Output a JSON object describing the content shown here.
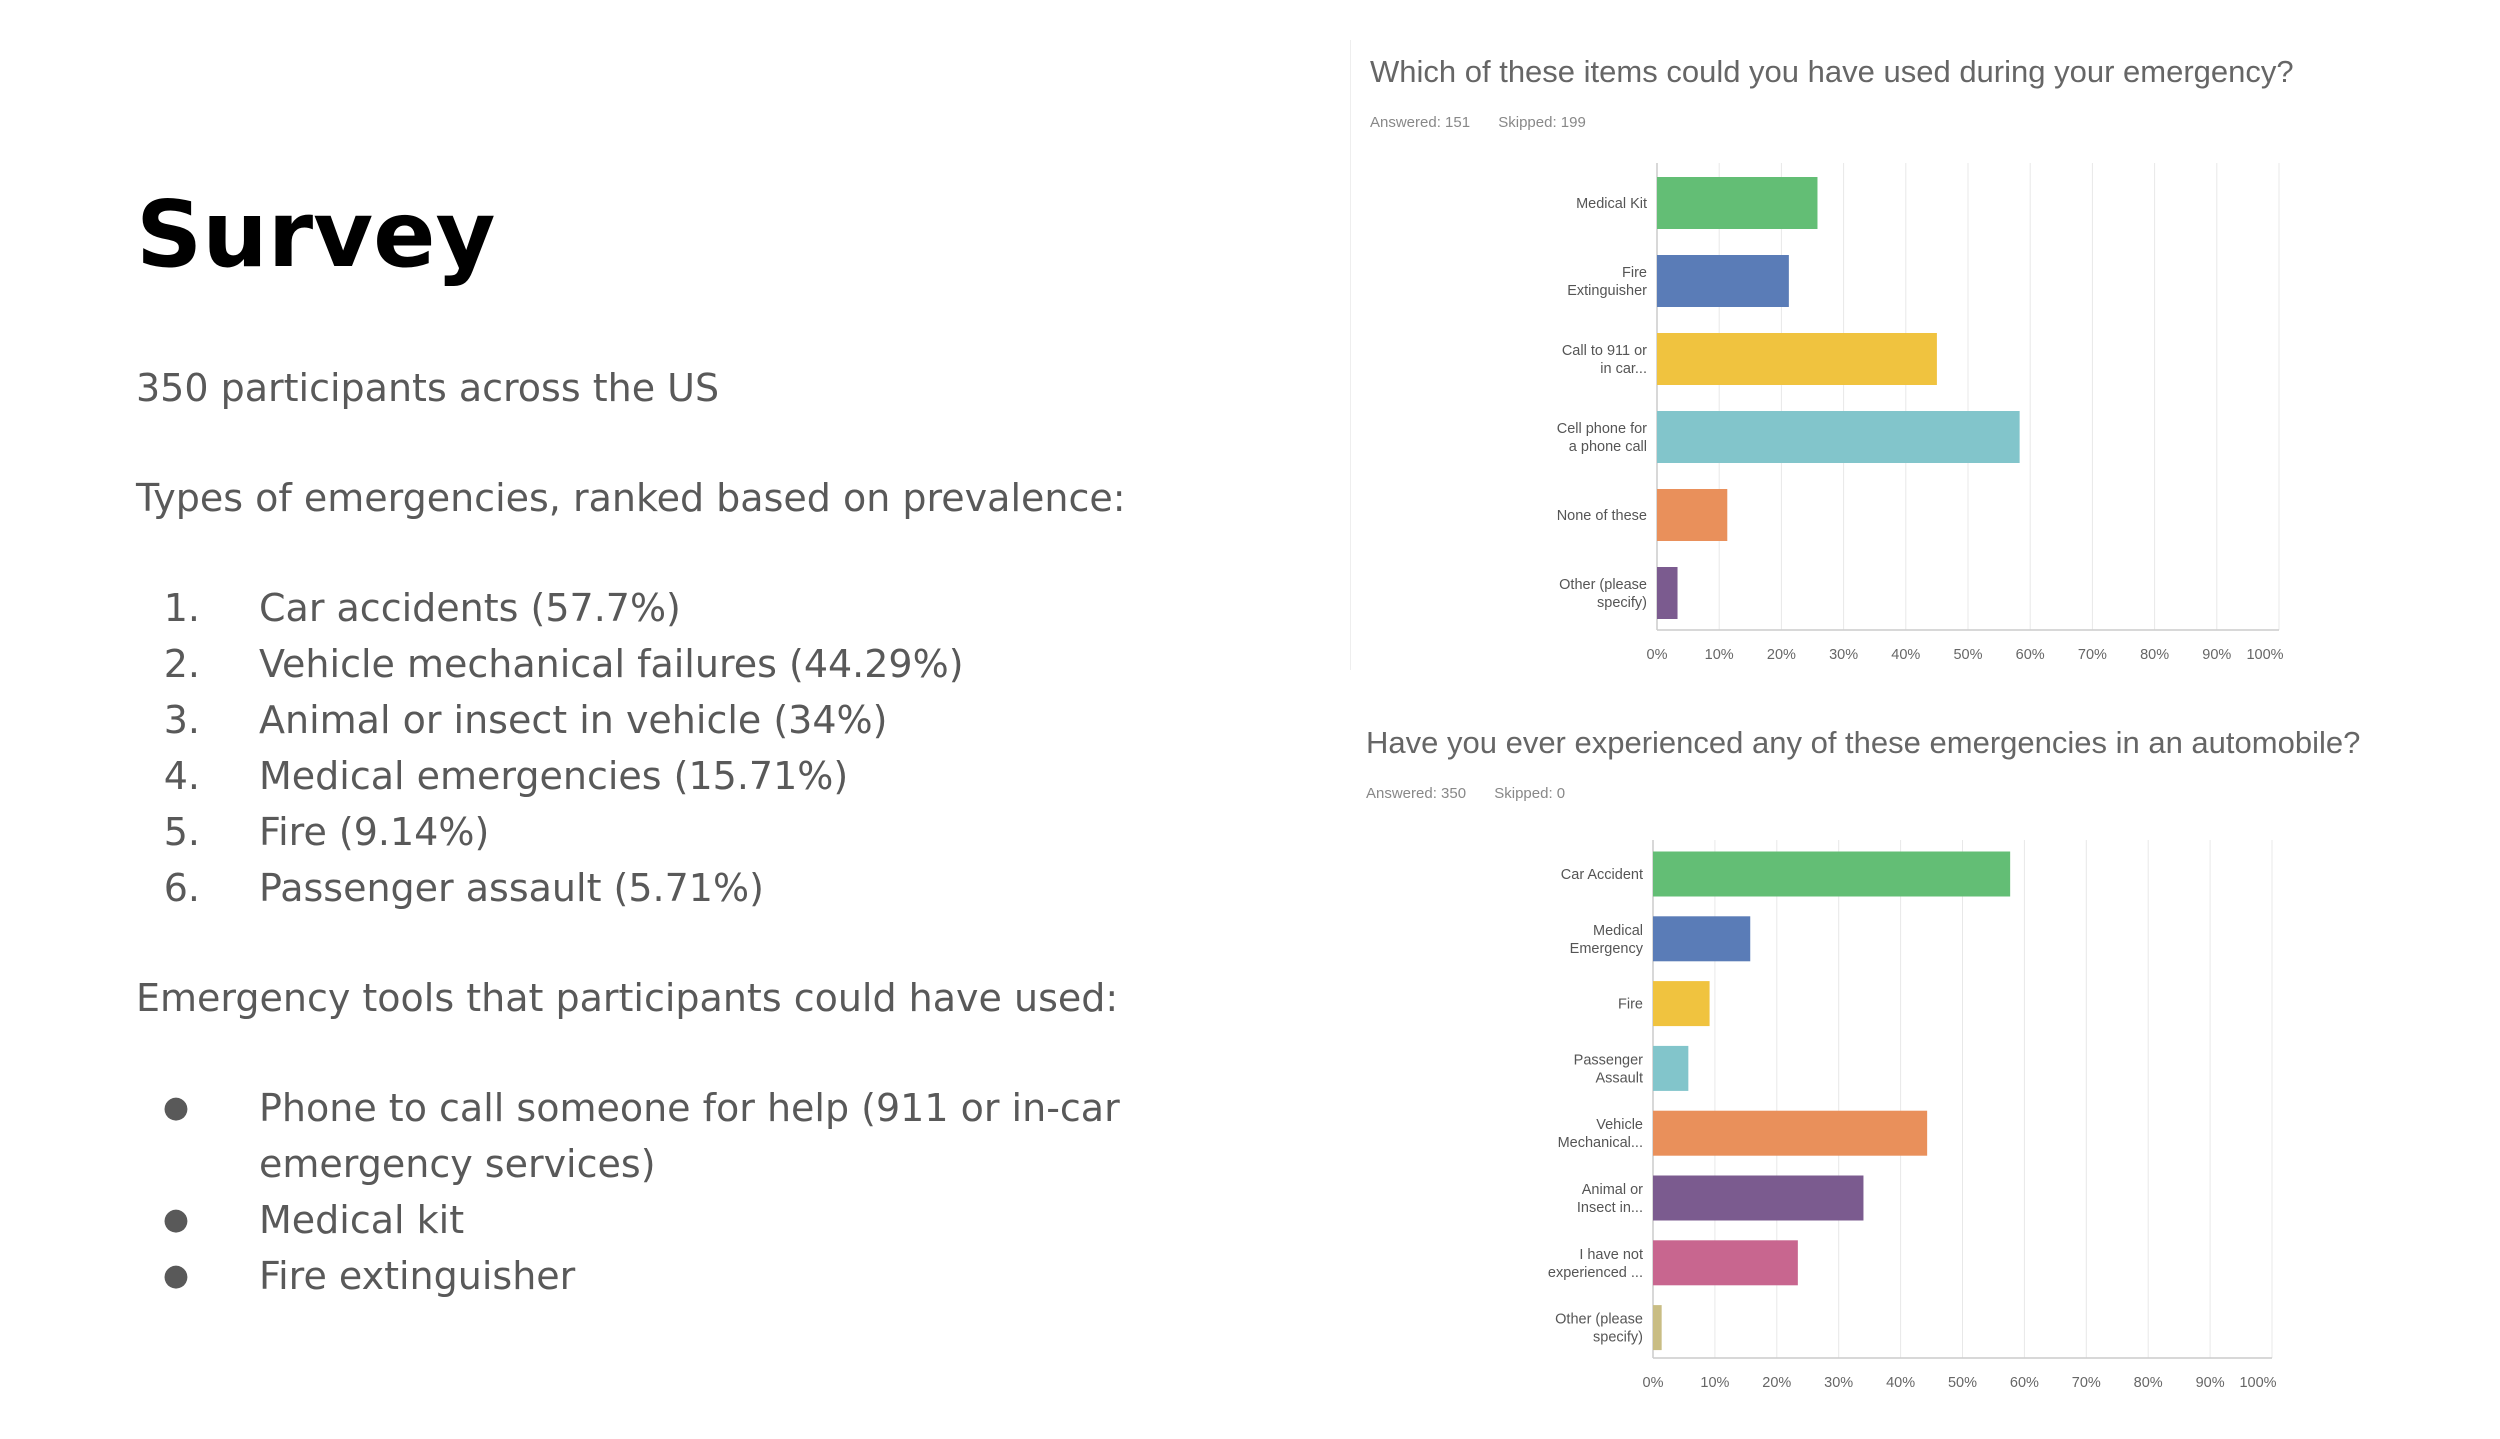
{
  "slide": {
    "title": "Survey",
    "participants": "350 participants across the US",
    "emergencies_heading": "Types of emergencies, ranked based on prevalence:",
    "emergencies": [
      {
        "marker": "1.",
        "text": "Car accidents (57.7%)"
      },
      {
        "marker": "2.",
        "text": "Vehicle mechanical failures (44.29%)"
      },
      {
        "marker": "3.",
        "text": "Animal or insect in vehicle (34%)"
      },
      {
        "marker": "4.",
        "text": "Medical emergencies (15.71%)"
      },
      {
        "marker": "5.",
        "text": "Fire (9.14%)"
      },
      {
        "marker": "6.",
        "text": "Passenger assault (5.71%)"
      }
    ],
    "tools_heading": "Emergency tools that participants could have used:",
    "tools": [
      {
        "marker": "●",
        "text": "Phone to call someone for help (911 or in-car emergency services)"
      },
      {
        "marker": "●",
        "text": "Medical kit"
      },
      {
        "marker": "●",
        "text": "Fire extinguisher"
      }
    ]
  },
  "chart_data": [
    {
      "type": "bar",
      "orientation": "horizontal",
      "title": "Which of these items could you have used during your emergency?",
      "answered": "Answered: 151",
      "skipped": "Skipped: 199",
      "categories": [
        "Medical Kit",
        "Fire Extinguisher",
        "Call to 911 or in car...",
        "Cell phone for a phone call",
        "None of these",
        "Other (please specify)"
      ],
      "category_lines": [
        [
          "Medical Kit"
        ],
        [
          "Fire",
          "Extinguisher"
        ],
        [
          "Call to 911 or",
          "in car..."
        ],
        [
          "Cell phone for",
          "a phone call"
        ],
        [
          "None of these"
        ],
        [
          "Other (please",
          "specify)"
        ]
      ],
      "values": [
        25.8,
        21.2,
        45.0,
        58.3,
        11.3,
        3.3
      ],
      "colors": [
        "#63BE75",
        "#5A7CB7",
        "#F0C33F",
        "#82C5CB",
        "#E9905B",
        "#7B5B8F"
      ],
      "xlim": [
        0,
        100
      ],
      "ticks": [
        "0%",
        "10%",
        "20%",
        "30%",
        "40%",
        "50%",
        "60%",
        "70%",
        "80%",
        "90%",
        "100%"
      ],
      "grid": true,
      "legend": "none"
    },
    {
      "type": "bar",
      "orientation": "horizontal",
      "title": "Have you ever experienced any of these emergencies in an automobile?",
      "answered": "Answered: 350",
      "skipped": "Skipped: 0",
      "categories": [
        "Car Accident",
        "Medical Emergency",
        "Fire",
        "Passenger Assault",
        "Vehicle Mechanical...",
        "Animal or Insect in...",
        "I have not experienced ...",
        "Other (please specify)"
      ],
      "category_lines": [
        [
          "Car Accident"
        ],
        [
          "Medical",
          "Emergency"
        ],
        [
          "Fire"
        ],
        [
          "Passenger",
          "Assault"
        ],
        [
          "Vehicle",
          "Mechanical..."
        ],
        [
          "Animal or",
          "Insect in..."
        ],
        [
          "I have not",
          "experienced ..."
        ],
        [
          "Other (please",
          "specify)"
        ]
      ],
      "values": [
        57.7,
        15.71,
        9.14,
        5.71,
        44.29,
        34.0,
        23.4,
        1.4
      ],
      "colors": [
        "#63BE75",
        "#5A7CB7",
        "#F0C33F",
        "#82C5CB",
        "#E9905B",
        "#7B5B8F",
        "#C8668F",
        "#C9BD84"
      ],
      "xlim": [
        0,
        100
      ],
      "ticks": [
        "0%",
        "10%",
        "20%",
        "30%",
        "40%",
        "50%",
        "60%",
        "70%",
        "80%",
        "90%",
        "100%"
      ],
      "grid": true,
      "legend": "none"
    }
  ]
}
